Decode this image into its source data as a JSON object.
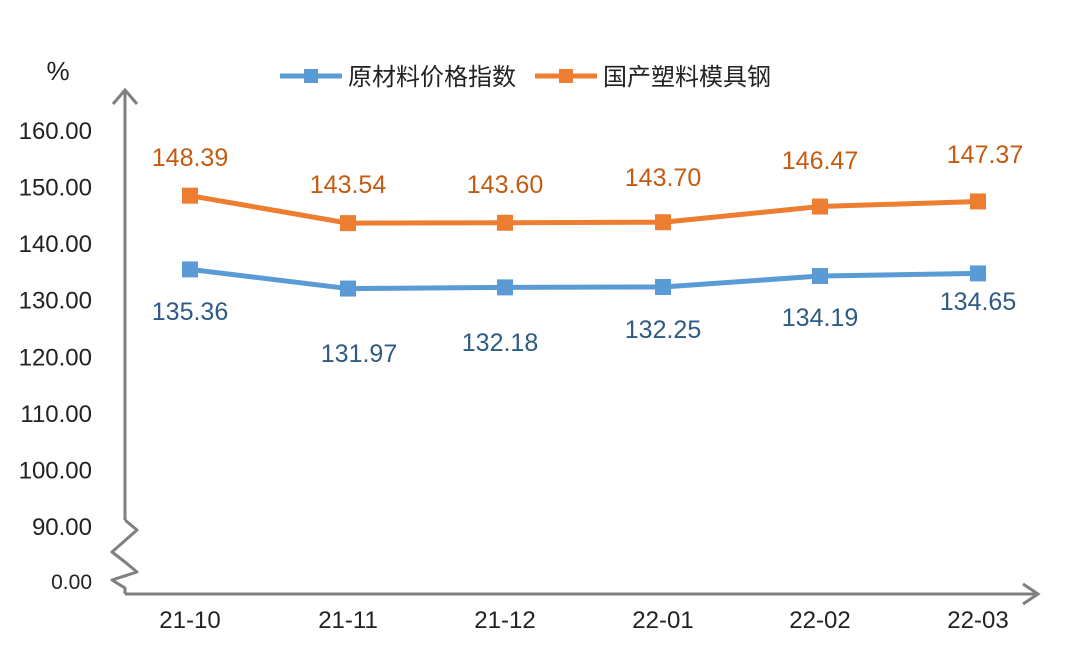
{
  "chart_data": {
    "type": "line",
    "title": "",
    "ylabel": "%",
    "xlabel": "",
    "categories": [
      "21-10",
      "21-11",
      "21-12",
      "22-01",
      "22-02",
      "22-03"
    ],
    "series": [
      {
        "name": "原材料价格指数",
        "color": "#5b9bd5",
        "label_color": "#2e5b85",
        "values": [
          135.36,
          131.97,
          132.18,
          132.25,
          134.19,
          134.65
        ],
        "value_labels": [
          "135.36",
          "131.97",
          "132.18",
          "132.25",
          "134.19",
          "134.65"
        ]
      },
      {
        "name": "国产塑料模具钢",
        "color": "#ed7d31",
        "label_color": "#c55a11",
        "values": [
          148.39,
          143.54,
          143.6,
          143.7,
          146.47,
          147.37
        ],
        "value_labels": [
          "148.39",
          "143.54",
          "143.60",
          "143.70",
          "146.47",
          "147.37"
        ]
      }
    ],
    "yticks": [
      "160.00",
      "150.00",
      "140.00",
      "130.00",
      "120.00",
      "110.00",
      "100.00",
      "90.00",
      "0.00"
    ],
    "ylim": [
      90,
      160
    ],
    "axis_break": "between 0.00 and 90.00",
    "grid": false,
    "legend_position": "top-center"
  }
}
